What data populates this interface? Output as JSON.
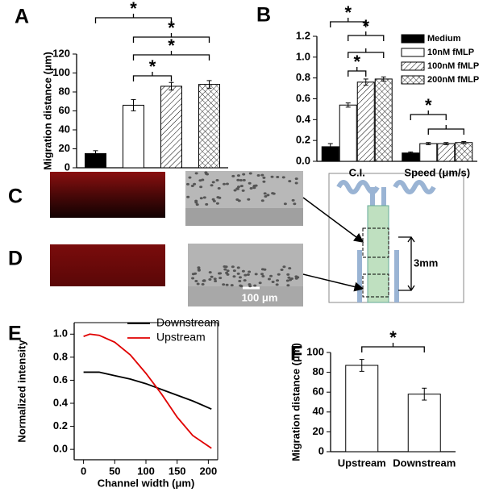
{
  "chart_data": [
    {
      "type": "bar",
      "label": "A",
      "ylabel": "Migration distance (μm)",
      "categories": [
        null,
        null,
        null,
        null
      ],
      "values": [
        15,
        66,
        86,
        88
      ],
      "errors": [
        3,
        6,
        4,
        4
      ],
      "fills": [
        "solid",
        "white",
        "diagonal",
        "crosshatch"
      ],
      "ylim": [
        0,
        120
      ],
      "yticks": [
        0,
        20,
        40,
        60,
        80,
        100,
        120
      ],
      "annotations": [
        "*",
        "*",
        "*",
        "*"
      ]
    },
    {
      "type": "grouped-bar",
      "label": "B",
      "categories": [
        "C.I.",
        "Speed (μm/s)"
      ],
      "series": [
        {
          "name": "Medium",
          "fill": "solid",
          "values": [
            0.14,
            0.08
          ],
          "errors": [
            0.03,
            0.01
          ]
        },
        {
          "name": "10nM fMLP",
          "fill": "white",
          "values": [
            0.54,
            0.17
          ],
          "errors": [
            0.02,
            0.01
          ]
        },
        {
          "name": "100nM fMLP",
          "fill": "diagonal",
          "values": [
            0.76,
            0.17
          ],
          "errors": [
            0.03,
            0.01
          ]
        },
        {
          "name": "200nM fMLP",
          "fill": "crosshatch",
          "values": [
            0.79,
            0.18
          ],
          "errors": [
            0.02,
            0.01
          ]
        }
      ],
      "ylim": [
        0,
        1.2
      ],
      "yticks": [
        {
          "value": 0,
          "label": "0.0"
        },
        0.2,
        0.4,
        0.6,
        0.8,
        {
          "value": 1,
          "label": "1.0"
        },
        1.2
      ],
      "legend": "upper right",
      "annotations": [
        "*",
        "*",
        "*",
        "*"
      ]
    },
    {
      "type": "line",
      "label": "E",
      "xlabel": "Channel width (μm)",
      "ylabel": "Normalized intensity",
      "x": [
        0,
        10,
        25,
        50,
        75,
        100,
        125,
        150,
        175,
        205
      ],
      "series": [
        {
          "name": "Downstream",
          "color": "#000000",
          "values": [
            0.67,
            0.67,
            0.67,
            0.64,
            0.61,
            0.57,
            0.52,
            0.47,
            0.42,
            0.35
          ]
        },
        {
          "name": "Upstream",
          "color": "#e00000",
          "values": [
            0.98,
            1.0,
            0.99,
            0.93,
            0.82,
            0.66,
            0.48,
            0.28,
            0.12,
            0.01
          ]
        }
      ],
      "xlim": [
        -15,
        215
      ],
      "xticks": [
        0,
        50,
        100,
        150,
        200
      ],
      "ylim": [
        -0.09,
        1.1
      ],
      "yticks": [
        {
          "value": 0,
          "label": "0.0"
        },
        0.2,
        0.4,
        0.6,
        0.8,
        {
          "value": 1,
          "label": "1.0"
        }
      ],
      "legend": "upper right"
    },
    {
      "type": "bar",
      "label": "F",
      "ylabel": "Migration distance (μm)",
      "categories": [
        "Upstream",
        "Downstream"
      ],
      "values": [
        87,
        58
      ],
      "errors": [
        6,
        6
      ],
      "fills": [
        "white",
        "white"
      ],
      "ylim": [
        0,
        100
      ],
      "yticks": [
        0,
        20,
        40,
        60,
        80,
        100
      ],
      "annotations": [
        "*"
      ]
    }
  ],
  "micrographs": {
    "panel_labels": [
      "C",
      "D"
    ],
    "scale_bar": "100 μm",
    "channel_distance": "3mm"
  }
}
